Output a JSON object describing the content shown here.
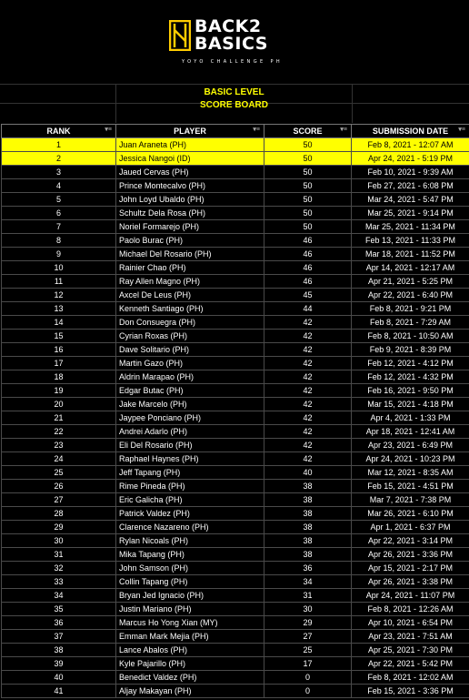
{
  "brand": {
    "line1": "BACK2",
    "line2": "BASICS",
    "tagline": "YOYO CHALLENGE PH",
    "accent_color": "#ffcc00"
  },
  "title": {
    "level": "BASIC LEVEL",
    "board": "SCORE BOARD",
    "text_color": "#ffff00"
  },
  "table": {
    "headers": {
      "rank": "RANK",
      "player": "PLAYER",
      "score": "SCORE",
      "date": "SUBMISSION DATE"
    },
    "filter_icon": "filter-icon",
    "highlight_color": "#ffff00",
    "rows": [
      {
        "rank": "1",
        "player": "Juan Araneta (PH)",
        "score": "50",
        "date": "Feb 8, 2021 - 12:07 AM",
        "highlight": true
      },
      {
        "rank": "2",
        "player": "Jessica Nangoi (ID)",
        "score": "50",
        "date": "Apr 24, 2021 - 5:19 PM",
        "highlight": true
      },
      {
        "rank": "3",
        "player": "Jaued Cervas (PH)",
        "score": "50",
        "date": "Feb 10, 2021 - 9:39 AM"
      },
      {
        "rank": "4",
        "player": "Prince Montecalvo (PH)",
        "score": "50",
        "date": "Feb 27, 2021 - 6:08 PM"
      },
      {
        "rank": "5",
        "player": "John Loyd Ubaldo (PH)",
        "score": "50",
        "date": "Mar 24, 2021 - 5:47 PM"
      },
      {
        "rank": "6",
        "player": "Schultz Dela Rosa (PH)",
        "score": "50",
        "date": "Mar 25, 2021 - 9:14 PM"
      },
      {
        "rank": "7",
        "player": "Noriel Formarejo (PH)",
        "score": "50",
        "date": "Mar 25, 2021 - 11:34 PM"
      },
      {
        "rank": "8",
        "player": "Paolo Burac (PH)",
        "score": "46",
        "date": "Feb 13, 2021 - 11:33 PM"
      },
      {
        "rank": "9",
        "player": "Michael Del Rosario (PH)",
        "score": "46",
        "date": "Mar 18, 2021 - 11:52 PM"
      },
      {
        "rank": "10",
        "player": "Rainier Chao (PH)",
        "score": "46",
        "date": "Apr 14, 2021 - 12:17 AM"
      },
      {
        "rank": "11",
        "player": "Ray Allen Magno (PH)",
        "score": "46",
        "date": "Apr 21, 2021 - 5:25 PM"
      },
      {
        "rank": "12",
        "player": "Axcel De Leus (PH)",
        "score": "45",
        "date": "Apr 22, 2021 - 6:40 PM"
      },
      {
        "rank": "13",
        "player": "Kenneth Santiago (PH)",
        "score": "44",
        "date": "Feb 8, 2021 - 9:21 PM"
      },
      {
        "rank": "14",
        "player": "Don Consuegra (PH)",
        "score": "42",
        "date": "Feb 8, 2021 - 7:29 AM"
      },
      {
        "rank": "15",
        "player": "Cyrian Roxas (PH)",
        "score": "42",
        "date": "Feb 8, 2021 - 10:50 AM"
      },
      {
        "rank": "16",
        "player": "Dave Solitario (PH)",
        "score": "42",
        "date": "Feb 9, 2021 - 8:39 PM"
      },
      {
        "rank": "17",
        "player": "Martin Gazo (PH)",
        "score": "42",
        "date": "Feb 12, 2021 - 4:12 PM"
      },
      {
        "rank": "18",
        "player": "Aldrin Marapao (PH)",
        "score": "42",
        "date": "Feb 12, 2021 - 4:32 PM"
      },
      {
        "rank": "19",
        "player": "Edgar Butac (PH)",
        "score": "42",
        "date": "Feb 16, 2021 - 9:50 PM"
      },
      {
        "rank": "20",
        "player": "Jake Marcelo (PH)",
        "score": "42",
        "date": "Mar 15, 2021 - 4:18 PM"
      },
      {
        "rank": "21",
        "player": "Jaypee Ponciano (PH)",
        "score": "42",
        "date": "Apr 4, 2021 - 1:33 PM"
      },
      {
        "rank": "22",
        "player": "Andrei Adarlo (PH)",
        "score": "42",
        "date": "Apr 18, 2021 - 12:41 AM"
      },
      {
        "rank": "23",
        "player": "Eli Del Rosario (PH)",
        "score": "42",
        "date": "Apr 23, 2021 - 6:49 PM"
      },
      {
        "rank": "24",
        "player": "Raphael Haynes (PH)",
        "score": "42",
        "date": "Apr 24, 2021 - 10:23 PM"
      },
      {
        "rank": "25",
        "player": "Jeff Tapang (PH)",
        "score": "40",
        "date": "Mar 12, 2021 - 8:35 AM"
      },
      {
        "rank": "26",
        "player": "Rime Pineda (PH)",
        "score": "38",
        "date": "Feb 15, 2021 - 4:51 PM"
      },
      {
        "rank": "27",
        "player": "Eric Galicha (PH)",
        "score": "38",
        "date": "Mar 7, 2021 - 7:38 PM"
      },
      {
        "rank": "28",
        "player": "Patrick Valdez (PH)",
        "score": "38",
        "date": "Mar 26, 2021 - 6:10 PM"
      },
      {
        "rank": "29",
        "player": "Clarence Nazareno (PH)",
        "score": "38",
        "date": "Apr 1, 2021 - 6:37 PM"
      },
      {
        "rank": "30",
        "player": "Rylan Nicoals (PH)",
        "score": "38",
        "date": "Apr 22, 2021 - 3:14 PM"
      },
      {
        "rank": "31",
        "player": "Mika Tapang (PH)",
        "score": "38",
        "date": "Apr 26, 2021 - 3:36 PM"
      },
      {
        "rank": "32",
        "player": "John Samson (PH)",
        "score": "36",
        "date": "Apr 15, 2021 - 2:17 PM"
      },
      {
        "rank": "33",
        "player": "Collin Tapang (PH)",
        "score": "34",
        "date": "Apr 26, 2021 - 3:38 PM"
      },
      {
        "rank": "34",
        "player": "Bryan Jed Ignacio (PH)",
        "score": "31",
        "date": "Apr 24, 2021 - 11:07 PM"
      },
      {
        "rank": "35",
        "player": "Justin Mariano (PH)",
        "score": "30",
        "date": "Feb 8, 2021 - 12:26 AM"
      },
      {
        "rank": "36",
        "player": "Marcus Ho Yong Xian (MY)",
        "score": "29",
        "date": "Apr 10, 2021 - 6:54 PM"
      },
      {
        "rank": "37",
        "player": "Emman Mark Mejia (PH)",
        "score": "27",
        "date": "Apr 23, 2021 - 7:51 AM"
      },
      {
        "rank": "38",
        "player": "Lance Abalos (PH)",
        "score": "25",
        "date": "Apr 25, 2021 - 7:30 PM"
      },
      {
        "rank": "39",
        "player": "Kyle Pajarillo (PH)",
        "score": "17",
        "date": "Apr 22, 2021 - 5:42 PM"
      },
      {
        "rank": "40",
        "player": "Benedict Valdez (PH)",
        "score": "0",
        "date": "Feb 8, 2021 - 12:02 AM"
      },
      {
        "rank": "41",
        "player": "Aljay Makayan (PH)",
        "score": "0",
        "date": "Feb 15, 2021 - 3:36 PM"
      }
    ]
  }
}
